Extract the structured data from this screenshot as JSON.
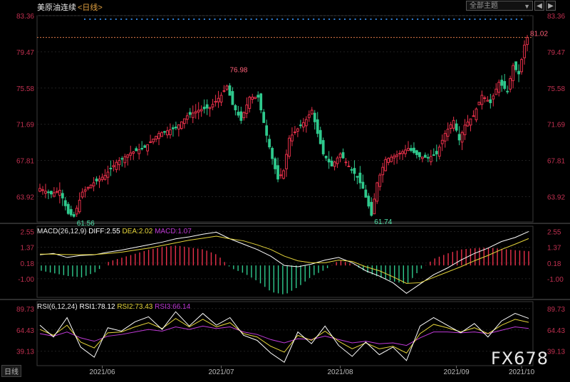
{
  "header": {
    "instrument": "美原油连续",
    "timeframe": "<日线>",
    "theme_selector": "全部主题",
    "theme_arrow": "▼",
    "prev_btn": "◀",
    "next_btn": "▶"
  },
  "macd_label": {
    "name": "MACD(26,12,9)",
    "diff": "DIFF:2.55",
    "dea": "DEA:2.02",
    "macd": "MACD:1.07"
  },
  "rsi_label": {
    "name": "RSI(6,12,24)",
    "rsi1": "RSI1:78.12",
    "rsi2": "RSI2:73.43",
    "rsi3": "RSI3:66.14"
  },
  "watermark": "FX678",
  "bottom_left": "日线",
  "bottom_right": "",
  "colors": {
    "up": "#e8304a",
    "down": "#2fc98d",
    "diff": "#ffffff",
    "dea": "#e5d53a",
    "rsi3": "#c03ad8",
    "dots": "#2f80d8",
    "resistance": "#e07a4a"
  },
  "chart_data": [
    {
      "type": "candlestick",
      "title": "美原油连续",
      "y_ticks": [
        83.36,
        79.47,
        75.58,
        71.69,
        67.81,
        63.92
      ],
      "ylim": [
        61.5,
        83.36
      ],
      "x_ticks": [
        "2021/06",
        "2021/07",
        "2021/08",
        "2021/09",
        "2021/10"
      ],
      "annotations": [
        {
          "text": "76.98",
          "value": 76.98,
          "kind": "high"
        },
        {
          "text": "61.56",
          "value": 61.56,
          "kind": "low"
        },
        {
          "text": "61.74",
          "value": 61.74,
          "kind": "low"
        },
        {
          "text": "81.02",
          "value": 81.02,
          "kind": "last"
        }
      ],
      "reference_line": 81.02,
      "close_path": [
        {
          "i": 0,
          "close": 64.8
        },
        {
          "i": 4,
          "close": 64.2
        },
        {
          "i": 7,
          "close": 64.6
        },
        {
          "i": 10,
          "close": 62.1
        },
        {
          "i": 12,
          "close": 61.8
        },
        {
          "i": 15,
          "close": 64.4
        },
        {
          "i": 19,
          "close": 65.4
        },
        {
          "i": 23,
          "close": 66.2
        },
        {
          "i": 27,
          "close": 67.6
        },
        {
          "i": 32,
          "close": 68.6
        },
        {
          "i": 37,
          "close": 69.2
        },
        {
          "i": 42,
          "close": 70.7
        },
        {
          "i": 48,
          "close": 71.3
        },
        {
          "i": 52,
          "close": 72.6
        },
        {
          "i": 56,
          "close": 73.2
        },
        {
          "i": 60,
          "close": 73.5
        },
        {
          "i": 64,
          "close": 74.8
        },
        {
          "i": 66,
          "close": 75.8
        },
        {
          "i": 68,
          "close": 73.8
        },
        {
          "i": 71,
          "close": 72.1
        },
        {
          "i": 74,
          "close": 74.6
        },
        {
          "i": 77,
          "close": 74.6
        },
        {
          "i": 80,
          "close": 70.5
        },
        {
          "i": 82,
          "close": 68.0
        },
        {
          "i": 84,
          "close": 65.8
        },
        {
          "i": 86,
          "close": 66.7
        },
        {
          "i": 88,
          "close": 70.2
        },
        {
          "i": 91,
          "close": 71.2
        },
        {
          "i": 94,
          "close": 72.2
        },
        {
          "i": 96,
          "close": 73.2
        },
        {
          "i": 98,
          "close": 70.7
        },
        {
          "i": 100,
          "close": 68.5
        },
        {
          "i": 103,
          "close": 67.2
        },
        {
          "i": 106,
          "close": 68.5
        },
        {
          "i": 109,
          "close": 67.2
        },
        {
          "i": 112,
          "close": 66.0
        },
        {
          "i": 114,
          "close": 64.8
        },
        {
          "i": 116,
          "close": 62.9
        },
        {
          "i": 117,
          "close": 61.9
        },
        {
          "i": 119,
          "close": 65.4
        },
        {
          "i": 122,
          "close": 67.9
        },
        {
          "i": 126,
          "close": 68.4
        },
        {
          "i": 130,
          "close": 69.1
        },
        {
          "i": 134,
          "close": 68.2
        },
        {
          "i": 137,
          "close": 68.1
        },
        {
          "i": 140,
          "close": 68.5
        },
        {
          "i": 143,
          "close": 70.7
        },
        {
          "i": 146,
          "close": 72.1
        },
        {
          "i": 148,
          "close": 70.0
        },
        {
          "i": 150,
          "close": 71.6
        },
        {
          "i": 153,
          "close": 72.6
        },
        {
          "i": 156,
          "close": 74.8
        },
        {
          "i": 159,
          "close": 74.0
        },
        {
          "i": 162,
          "close": 76.2
        },
        {
          "i": 165,
          "close": 75.2
        },
        {
          "i": 167,
          "close": 78.0
        },
        {
          "i": 169,
          "close": 77.1
        },
        {
          "i": 171,
          "close": 80.2
        },
        {
          "i": 172,
          "close": 81.02
        }
      ]
    },
    {
      "type": "line+bar",
      "title": "MACD(26,12,9)",
      "y_ticks": [
        2.55,
        1.37,
        0.18,
        -1.0
      ],
      "ylim": [
        -2.4,
        2.95
      ],
      "series": [
        {
          "name": "DIFF",
          "values": [
            0.8,
            0.9,
            0.6,
            0.75,
            0.8,
            1.0,
            1.15,
            1.35,
            1.55,
            1.75,
            2.0,
            2.15,
            2.35,
            2.5,
            2.0,
            1.6,
            1.2,
            0.7,
            0.0,
            -0.1,
            0.1,
            0.4,
            0.6,
            0.2,
            -0.4,
            -0.8,
            -1.3,
            -2.1,
            -1.4,
            -0.7,
            -0.2,
            0.4,
            0.9,
            1.3,
            1.8,
            2.1,
            2.55
          ]
        },
        {
          "name": "DEA",
          "values": [
            0.85,
            0.85,
            0.82,
            0.8,
            0.82,
            0.9,
            1.0,
            1.15,
            1.3,
            1.5,
            1.7,
            1.9,
            2.05,
            2.2,
            2.0,
            1.85,
            1.55,
            1.2,
            0.7,
            0.35,
            0.2,
            0.2,
            0.4,
            0.3,
            -0.1,
            -0.4,
            -0.85,
            -1.35,
            -1.3,
            -0.9,
            -0.5,
            -0.1,
            0.35,
            0.75,
            1.2,
            1.6,
            2.02
          ]
        },
        {
          "name": "MACD",
          "values": [
            -0.4,
            -0.6,
            -0.8,
            -0.9,
            -0.5,
            0.3,
            0.6,
            0.9,
            1.2,
            1.4,
            1.5,
            1.35,
            1.2,
            0.8,
            -0.2,
            -0.6,
            -1.2,
            -2.0,
            -2.2,
            -1.6,
            -0.8,
            -0.3,
            0.4,
            0.1,
            -0.5,
            -0.9,
            -1.2,
            -1.4,
            -0.3,
            0.5,
            0.9,
            1.2,
            1.3,
            1.35,
            1.25,
            1.15,
            1.07
          ]
        }
      ]
    },
    {
      "type": "line",
      "title": "RSI(6,12,24)",
      "y_ticks": [
        89.73,
        64.43,
        39.13
      ],
      "ylim": [
        22,
        98
      ],
      "series": [
        {
          "name": "RSI1",
          "values": [
            70,
            56,
            79,
            44,
            32,
            67,
            63,
            74,
            80,
            65,
            86,
            69,
            84,
            70,
            79,
            58,
            52,
            37,
            26,
            62,
            48,
            69,
            46,
            33,
            50,
            35,
            44,
            28,
            69,
            79,
            70,
            61,
            72,
            56,
            75,
            84,
            78.12
          ]
        },
        {
          "name": "RSI2",
          "values": [
            65,
            58,
            70,
            50,
            43,
            61,
            62,
            68,
            73,
            66,
            78,
            68,
            77,
            68,
            73,
            60,
            56,
            45,
            38,
            58,
            52,
            63,
            51,
            42,
            49,
            42,
            45,
            37,
            60,
            71,
            67,
            62,
            67,
            60,
            70,
            77,
            73.43
          ]
        },
        {
          "name": "RSI3",
          "values": [
            60,
            57,
            62,
            55,
            51,
            57,
            59,
            62,
            65,
            63,
            68,
            65,
            69,
            66,
            68,
            62,
            59,
            53,
            49,
            54,
            53,
            57,
            53,
            49,
            51,
            48,
            49,
            46,
            55,
            62,
            62,
            61,
            62,
            60,
            64,
            68,
            66.14
          ]
        }
      ]
    }
  ]
}
